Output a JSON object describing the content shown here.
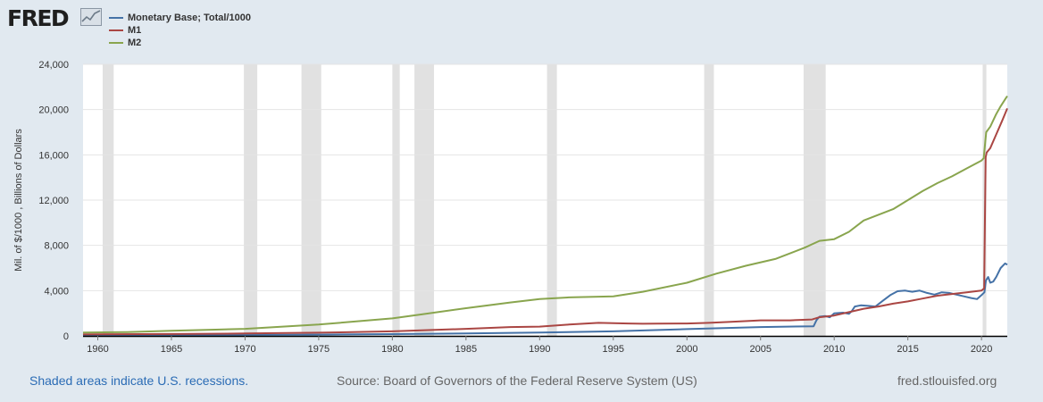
{
  "header": {
    "logo_text": "FRED",
    "logo_icon": "line-graph-icon"
  },
  "chart_data": {
    "type": "line",
    "title": "",
    "xlabel": "",
    "ylabel": "Mil. of $/1000 , Billions of Dollars",
    "xlim": [
      1959.0,
      2021.75
    ],
    "ylim": [
      0,
      24000
    ],
    "yticks": [
      0,
      4000,
      8000,
      12000,
      16000,
      20000,
      24000
    ],
    "ytick_labels": [
      "0",
      "4,000",
      "8,000",
      "12,000",
      "16,000",
      "20,000",
      "24,000"
    ],
    "xticks": [
      1960,
      1965,
      1970,
      1975,
      1980,
      1985,
      1990,
      1995,
      2000,
      2005,
      2010,
      2015,
      2020
    ],
    "xtick_labels": [
      "1960",
      "1965",
      "1970",
      "1975",
      "1980",
      "1985",
      "1990",
      "1995",
      "2000",
      "2005",
      "2010",
      "2015",
      "2020"
    ],
    "grid": true,
    "legend_position": "top-left",
    "recessions": [
      [
        1960.33,
        1961.08
      ],
      [
        1969.92,
        1970.83
      ],
      [
        1973.83,
        1975.17
      ],
      [
        1980.0,
        1980.5
      ],
      [
        1981.5,
        1982.83
      ],
      [
        1990.5,
        1991.17
      ],
      [
        2001.17,
        2001.83
      ],
      [
        2007.92,
        2009.42
      ],
      [
        2020.08,
        2020.33
      ]
    ],
    "series": [
      {
        "name": "Monetary Base; Total/1000",
        "color": "#4572a7",
        "points": [
          [
            1959,
            50
          ],
          [
            1965,
            60
          ],
          [
            1970,
            80
          ],
          [
            1975,
            110
          ],
          [
            1980,
            160
          ],
          [
            1985,
            220
          ],
          [
            1990,
            300
          ],
          [
            1995,
            400
          ],
          [
            2000,
            600
          ],
          [
            2005,
            780
          ],
          [
            2008.6,
            850
          ],
          [
            2008.8,
            1400
          ],
          [
            2009.0,
            1700
          ],
          [
            2009.4,
            1750
          ],
          [
            2009.7,
            1650
          ],
          [
            2010.0,
            2000
          ],
          [
            2010.6,
            2050
          ],
          [
            2011.0,
            1950
          ],
          [
            2011.2,
            2200
          ],
          [
            2011.4,
            2600
          ],
          [
            2011.8,
            2700
          ],
          [
            2012.3,
            2650
          ],
          [
            2012.8,
            2600
          ],
          [
            2013.3,
            3100
          ],
          [
            2013.8,
            3600
          ],
          [
            2014.3,
            3950
          ],
          [
            2014.8,
            4000
          ],
          [
            2015.3,
            3900
          ],
          [
            2015.8,
            4000
          ],
          [
            2016.3,
            3800
          ],
          [
            2016.8,
            3650
          ],
          [
            2017.3,
            3850
          ],
          [
            2017.8,
            3800
          ],
          [
            2018.3,
            3650
          ],
          [
            2018.8,
            3500
          ],
          [
            2019.3,
            3350
          ],
          [
            2019.7,
            3250
          ],
          [
            2020.0,
            3600
          ],
          [
            2020.2,
            3850
          ],
          [
            2020.3,
            4900
          ],
          [
            2020.45,
            5200
          ],
          [
            2020.6,
            4700
          ],
          [
            2020.8,
            4800
          ],
          [
            2021.0,
            5200
          ],
          [
            2021.3,
            6000
          ],
          [
            2021.6,
            6400
          ],
          [
            2021.75,
            6300
          ]
        ]
      },
      {
        "name": "M1",
        "color": "#aa4643",
        "points": [
          [
            1959,
            140
          ],
          [
            1965,
            165
          ],
          [
            1970,
            215
          ],
          [
            1975,
            285
          ],
          [
            1980,
            400
          ],
          [
            1985,
            620
          ],
          [
            1988,
            780
          ],
          [
            1990,
            820
          ],
          [
            1992,
            1000
          ],
          [
            1994,
            1150
          ],
          [
            1996,
            1100
          ],
          [
            1997,
            1070
          ],
          [
            1998,
            1090
          ],
          [
            2000,
            1100
          ],
          [
            2001.5,
            1150
          ],
          [
            2003,
            1250
          ],
          [
            2005,
            1370
          ],
          [
            2007,
            1370
          ],
          [
            2008.5,
            1450
          ],
          [
            2009,
            1650
          ],
          [
            2010,
            1800
          ],
          [
            2011,
            2100
          ],
          [
            2012,
            2400
          ],
          [
            2013,
            2600
          ],
          [
            2014,
            2850
          ],
          [
            2015,
            3050
          ],
          [
            2016,
            3300
          ],
          [
            2017,
            3550
          ],
          [
            2018,
            3700
          ],
          [
            2019,
            3850
          ],
          [
            2020.0,
            4000
          ],
          [
            2020.18,
            4200
          ],
          [
            2020.28,
            15800
          ],
          [
            2020.35,
            16200
          ],
          [
            2020.6,
            16600
          ],
          [
            2021.0,
            17800
          ],
          [
            2021.4,
            19000
          ],
          [
            2021.75,
            20100
          ]
        ]
      },
      {
        "name": "M2",
        "color": "#89a54e",
        "points": [
          [
            1959,
            290
          ],
          [
            1962,
            340
          ],
          [
            1965,
            450
          ],
          [
            1968,
            550
          ],
          [
            1970,
            620
          ],
          [
            1975,
            1000
          ],
          [
            1980,
            1550
          ],
          [
            1982,
            1900
          ],
          [
            1985,
            2450
          ],
          [
            1988,
            2950
          ],
          [
            1990,
            3250
          ],
          [
            1992,
            3400
          ],
          [
            1995,
            3500
          ],
          [
            1997,
            3900
          ],
          [
            2000,
            4700
          ],
          [
            2002,
            5500
          ],
          [
            2004,
            6200
          ],
          [
            2006,
            6800
          ],
          [
            2008,
            7800
          ],
          [
            2009,
            8400
          ],
          [
            2010,
            8550
          ],
          [
            2011,
            9200
          ],
          [
            2012,
            10200
          ],
          [
            2014,
            11200
          ],
          [
            2015,
            12000
          ],
          [
            2016,
            12800
          ],
          [
            2017,
            13500
          ],
          [
            2018,
            14100
          ],
          [
            2019,
            14800
          ],
          [
            2020.0,
            15500
          ],
          [
            2020.15,
            15700
          ],
          [
            2020.32,
            18000
          ],
          [
            2020.6,
            18500
          ],
          [
            2021.0,
            19600
          ],
          [
            2021.3,
            20300
          ],
          [
            2021.6,
            20900
          ],
          [
            2021.75,
            21200
          ]
        ]
      }
    ]
  },
  "footer": {
    "recession_note": "Shaded areas indicate U.S. recessions.",
    "source": "Source: Board of Governors of the Federal Reserve System (US)",
    "url": "fred.stlouisfed.org"
  }
}
